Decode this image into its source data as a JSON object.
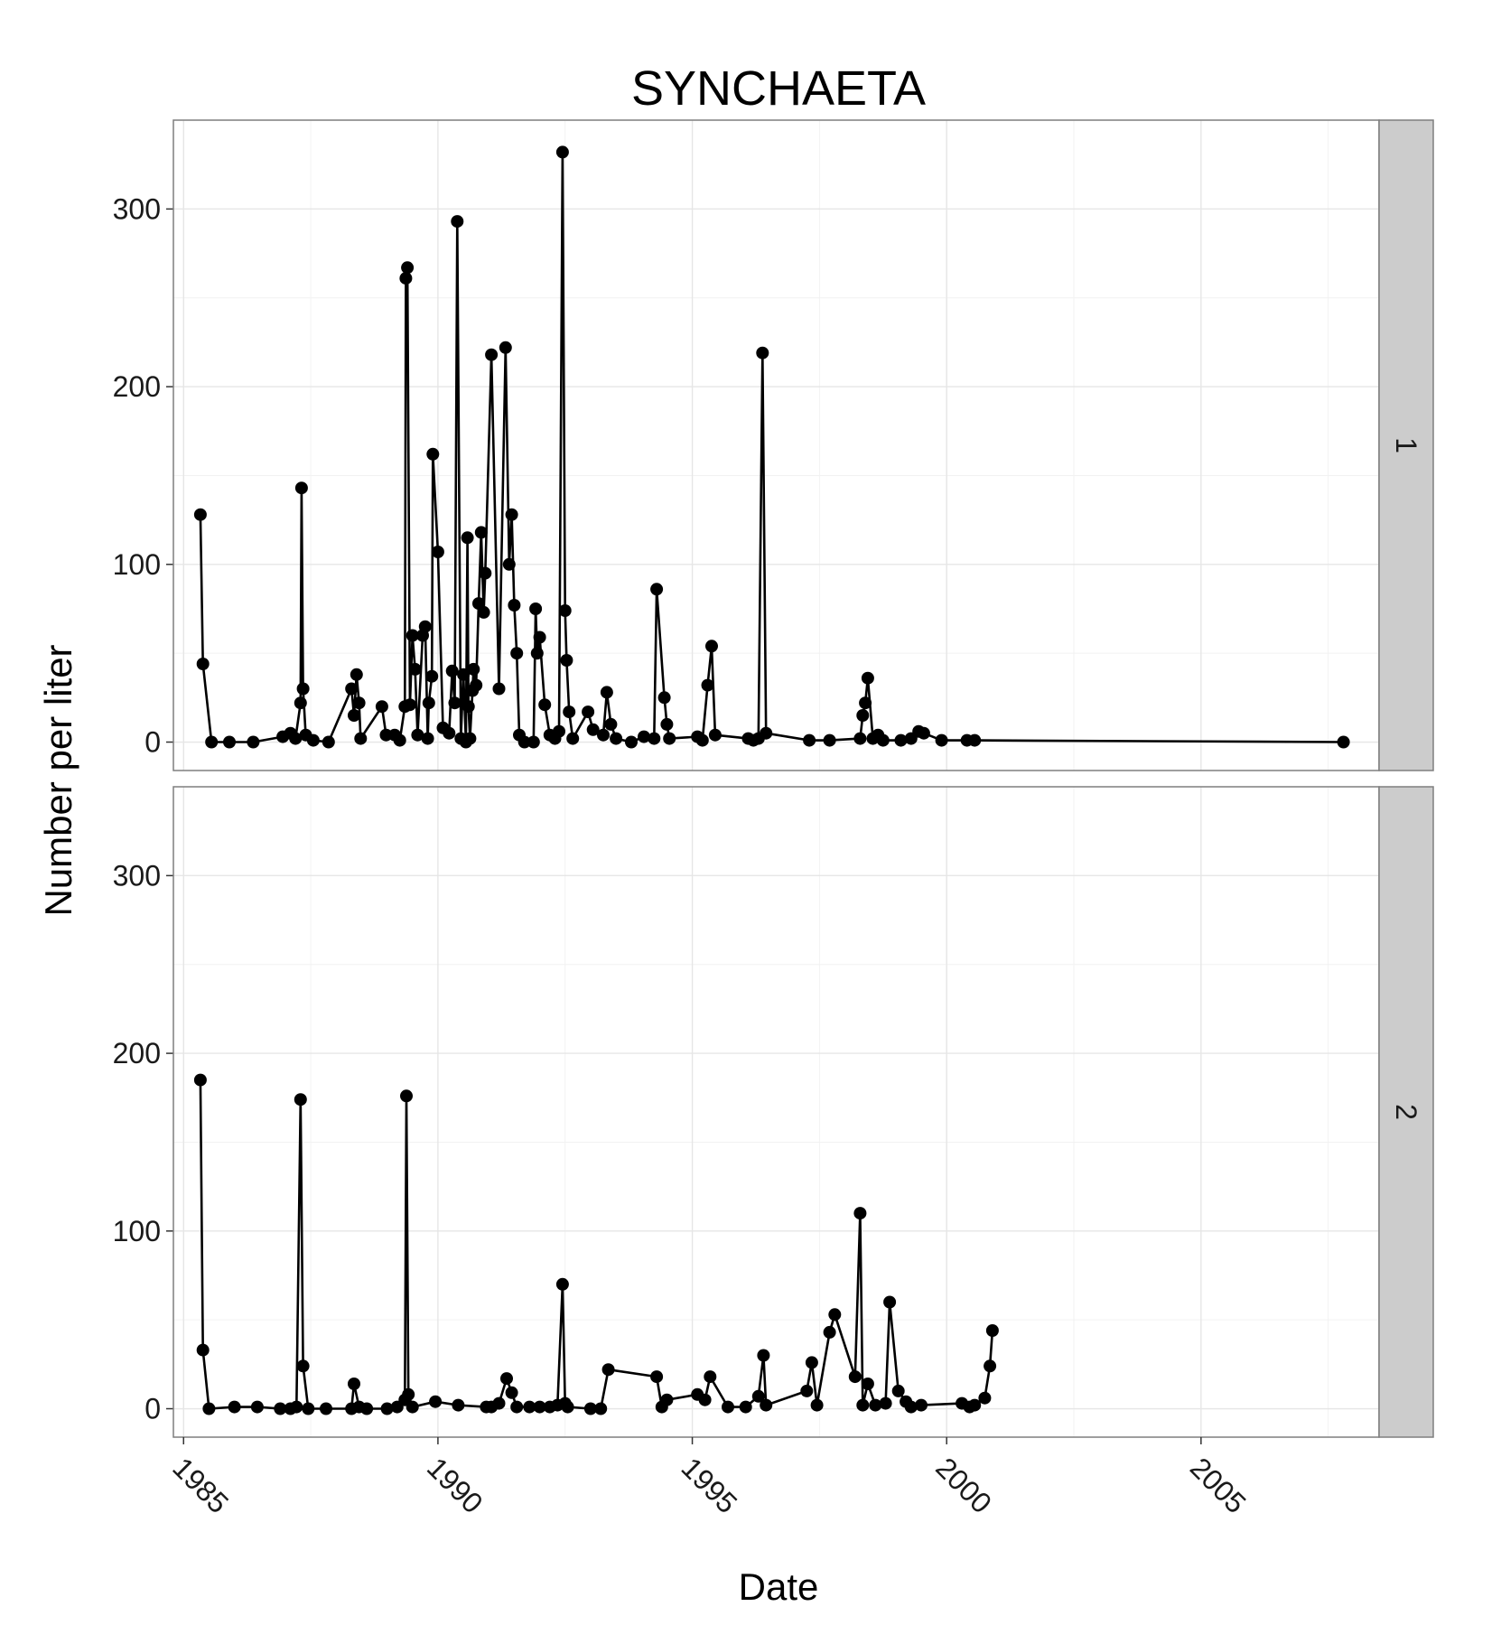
{
  "chart_data": {
    "type": "line",
    "title": "SYNCHAETA",
    "xlabel": "Date",
    "ylabel": "Number per liter",
    "xlim": [
      1984.8,
      2008.5
    ],
    "ylim": [
      -16,
      350
    ],
    "x_ticks": [
      1985,
      1990,
      1995,
      2000,
      2005
    ],
    "x_tick_labels": [
      "1985",
      "1990",
      "1995",
      "2000",
      "2005"
    ],
    "y_ticks": [
      0,
      100,
      200,
      300
    ],
    "y_tick_labels": [
      "0",
      "100",
      "200",
      "300"
    ],
    "grid": true,
    "facet_strip_position": "right",
    "series_color": "#000000",
    "panel_background": "#ffffff",
    "strip_background": "#cccccc",
    "panels": [
      {
        "strip_label": "1",
        "points": [
          [
            1985.33,
            128
          ],
          [
            1985.38,
            44
          ],
          [
            1985.55,
            0
          ],
          [
            1985.9,
            0
          ],
          [
            1986.37,
            0
          ],
          [
            1986.95,
            3
          ],
          [
            1987.1,
            5
          ],
          [
            1987.2,
            2
          ],
          [
            1987.3,
            22
          ],
          [
            1987.32,
            143
          ],
          [
            1987.35,
            30
          ],
          [
            1987.4,
            4
          ],
          [
            1987.55,
            1
          ],
          [
            1987.85,
            0
          ],
          [
            1988.3,
            30
          ],
          [
            1988.35,
            15
          ],
          [
            1988.4,
            38
          ],
          [
            1988.45,
            22
          ],
          [
            1988.48,
            2
          ],
          [
            1988.9,
            20
          ],
          [
            1988.98,
            4
          ],
          [
            1989.15,
            4
          ],
          [
            1989.25,
            1
          ],
          [
            1989.35,
            20
          ],
          [
            1989.37,
            261
          ],
          [
            1989.4,
            267
          ],
          [
            1989.45,
            21
          ],
          [
            1989.5,
            60
          ],
          [
            1989.55,
            41
          ],
          [
            1989.6,
            4
          ],
          [
            1989.7,
            60
          ],
          [
            1989.75,
            65
          ],
          [
            1989.8,
            2
          ],
          [
            1989.82,
            22
          ],
          [
            1989.88,
            37
          ],
          [
            1989.9,
            162
          ],
          [
            1990.0,
            107
          ],
          [
            1990.1,
            8
          ],
          [
            1990.22,
            5
          ],
          [
            1990.28,
            40
          ],
          [
            1990.33,
            22
          ],
          [
            1990.38,
            293
          ],
          [
            1990.45,
            2
          ],
          [
            1990.5,
            38
          ],
          [
            1990.55,
            0
          ],
          [
            1990.58,
            115
          ],
          [
            1990.6,
            20
          ],
          [
            1990.63,
            2
          ],
          [
            1990.68,
            29
          ],
          [
            1990.7,
            41
          ],
          [
            1990.75,
            32
          ],
          [
            1990.8,
            78
          ],
          [
            1990.85,
            118
          ],
          [
            1990.9,
            73
          ],
          [
            1990.93,
            95
          ],
          [
            1991.05,
            218
          ],
          [
            1991.2,
            30
          ],
          [
            1991.33,
            222
          ],
          [
            1991.4,
            100
          ],
          [
            1991.45,
            128
          ],
          [
            1991.5,
            77
          ],
          [
            1991.55,
            50
          ],
          [
            1991.6,
            4
          ],
          [
            1991.7,
            0
          ],
          [
            1991.88,
            0
          ],
          [
            1991.92,
            75
          ],
          [
            1991.95,
            50
          ],
          [
            1992.0,
            59
          ],
          [
            1992.1,
            21
          ],
          [
            1992.2,
            4
          ],
          [
            1992.3,
            2
          ],
          [
            1992.38,
            6
          ],
          [
            1992.45,
            332
          ],
          [
            1992.5,
            74
          ],
          [
            1992.53,
            46
          ],
          [
            1992.58,
            17
          ],
          [
            1992.65,
            2
          ],
          [
            1992.95,
            17
          ],
          [
            1993.05,
            7
          ],
          [
            1993.25,
            4
          ],
          [
            1993.32,
            28
          ],
          [
            1993.4,
            10
          ],
          [
            1993.5,
            2
          ],
          [
            1993.8,
            0
          ],
          [
            1994.05,
            3
          ],
          [
            1994.25,
            2
          ],
          [
            1994.3,
            86
          ],
          [
            1994.45,
            25
          ],
          [
            1994.5,
            10
          ],
          [
            1994.55,
            2
          ],
          [
            1995.1,
            3
          ],
          [
            1995.2,
            1
          ],
          [
            1995.3,
            32
          ],
          [
            1995.38,
            54
          ],
          [
            1995.45,
            4
          ],
          [
            1996.1,
            2
          ],
          [
            1996.2,
            1
          ],
          [
            1996.3,
            2
          ],
          [
            1996.38,
            219
          ],
          [
            1996.45,
            5
          ],
          [
            1997.3,
            1
          ],
          [
            1997.7,
            1
          ],
          [
            1998.3,
            2
          ],
          [
            1998.35,
            15
          ],
          [
            1998.4,
            22
          ],
          [
            1998.45,
            36
          ],
          [
            1998.55,
            2
          ],
          [
            1998.65,
            4
          ],
          [
            1998.75,
            1
          ],
          [
            1999.1,
            1
          ],
          [
            1999.3,
            2
          ],
          [
            1999.45,
            6
          ],
          [
            1999.55,
            5
          ],
          [
            1999.9,
            1
          ],
          [
            2000.4,
            1
          ],
          [
            2000.55,
            1
          ],
          [
            2007.8,
            0
          ]
        ]
      },
      {
        "strip_label": "2",
        "points": [
          [
            1985.33,
            185
          ],
          [
            1985.38,
            33
          ],
          [
            1985.5,
            0
          ],
          [
            1986.0,
            1
          ],
          [
            1986.45,
            1
          ],
          [
            1986.9,
            0
          ],
          [
            1987.1,
            0
          ],
          [
            1987.22,
            1
          ],
          [
            1987.3,
            174
          ],
          [
            1987.35,
            24
          ],
          [
            1987.45,
            0
          ],
          [
            1987.8,
            0
          ],
          [
            1988.3,
            0
          ],
          [
            1988.35,
            14
          ],
          [
            1988.45,
            1
          ],
          [
            1988.6,
            0
          ],
          [
            1989.0,
            0
          ],
          [
            1989.2,
            1
          ],
          [
            1989.35,
            5
          ],
          [
            1989.38,
            176
          ],
          [
            1989.42,
            8
          ],
          [
            1989.5,
            1
          ],
          [
            1989.95,
            4
          ],
          [
            1990.4,
            2
          ],
          [
            1990.95,
            1
          ],
          [
            1991.05,
            1
          ],
          [
            1991.2,
            3
          ],
          [
            1991.35,
            17
          ],
          [
            1991.45,
            9
          ],
          [
            1991.55,
            1
          ],
          [
            1991.8,
            1
          ],
          [
            1992.0,
            1
          ],
          [
            1992.2,
            1
          ],
          [
            1992.35,
            2
          ],
          [
            1992.45,
            70
          ],
          [
            1992.5,
            3
          ],
          [
            1992.55,
            1
          ],
          [
            1993.0,
            0
          ],
          [
            1993.2,
            0
          ],
          [
            1993.35,
            22
          ],
          [
            1994.3,
            18
          ],
          [
            1994.4,
            1
          ],
          [
            1994.5,
            5
          ],
          [
            1995.1,
            8
          ],
          [
            1995.25,
            5
          ],
          [
            1995.35,
            18
          ],
          [
            1995.7,
            1
          ],
          [
            1996.05,
            1
          ],
          [
            1996.3,
            7
          ],
          [
            1996.4,
            30
          ],
          [
            1996.45,
            2
          ],
          [
            1997.25,
            10
          ],
          [
            1997.35,
            26
          ],
          [
            1997.45,
            2
          ],
          [
            1997.7,
            43
          ],
          [
            1997.8,
            53
          ],
          [
            1998.2,
            18
          ],
          [
            1998.3,
            110
          ],
          [
            1998.35,
            2
          ],
          [
            1998.45,
            14
          ],
          [
            1998.6,
            2
          ],
          [
            1998.8,
            3
          ],
          [
            1998.88,
            60
          ],
          [
            1999.05,
            10
          ],
          [
            1999.2,
            4
          ],
          [
            1999.3,
            1
          ],
          [
            1999.5,
            2
          ],
          [
            2000.3,
            3
          ],
          [
            2000.45,
            1
          ],
          [
            2000.55,
            2
          ],
          [
            2000.75,
            6
          ],
          [
            2000.85,
            24
          ],
          [
            2000.9,
            44
          ]
        ]
      }
    ]
  }
}
